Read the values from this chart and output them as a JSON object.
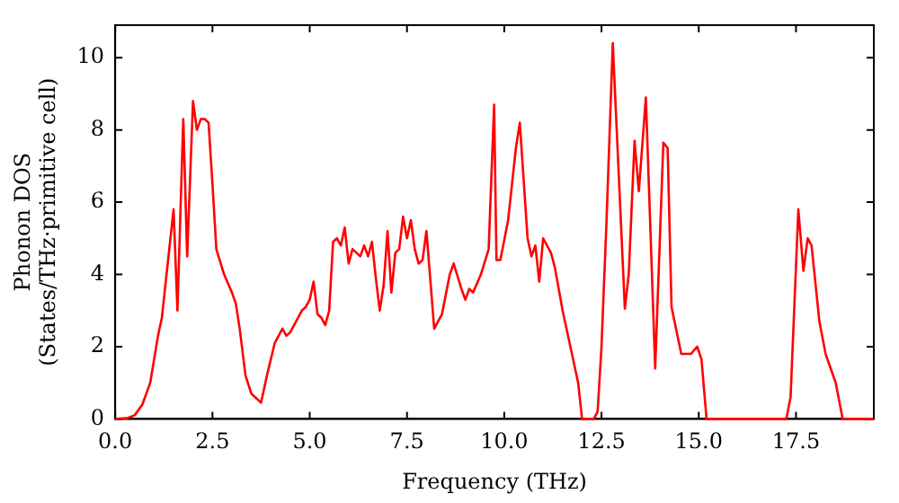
{
  "chart_data": {
    "type": "line",
    "xlabel": "Frequency (THz)",
    "ylabel": "Phonon DOS\n(States/THz·primitive cell)",
    "xlim": [
      0,
      19.5
    ],
    "xticks": [
      {
        "value": 0,
        "label": "0.0"
      },
      {
        "value": 2.5,
        "label": "2.5"
      },
      {
        "value": 5,
        "label": "5.0"
      },
      {
        "value": 7.5,
        "label": "7.5"
      },
      {
        "value": 10,
        "label": "10.0"
      },
      {
        "value": 12.5,
        "label": "12.5"
      },
      {
        "value": 15,
        "label": "15.0"
      },
      {
        "value": 17.5,
        "label": "17.5"
      }
    ],
    "ylim": [
      0,
      10.9
    ],
    "yticks": [
      0,
      2,
      4,
      6,
      8,
      10
    ],
    "grid": false,
    "legend": false,
    "marker": "none",
    "line_style": "solid",
    "series": [
      {
        "color": "#ff0000",
        "x": [
          0,
          0.3,
          0.5,
          0.7,
          0.9,
          1.1,
          1.2,
          1.5,
          1.6,
          1.75,
          1.85,
          2.0,
          2.1,
          2.2,
          2.3,
          2.4,
          2.5,
          2.6,
          2.8,
          3.0,
          3.1,
          3.2,
          3.35,
          3.5,
          3.75,
          3.9,
          4.1,
          4.3,
          4.4,
          4.5,
          4.6,
          4.8,
          4.9,
          5.0,
          5.1,
          5.2,
          5.3,
          5.4,
          5.5,
          5.6,
          5.7,
          5.8,
          5.9,
          6.0,
          6.1,
          6.2,
          6.3,
          6.4,
          6.5,
          6.6,
          6.7,
          6.8,
          6.9,
          7.0,
          7.1,
          7.2,
          7.3,
          7.4,
          7.5,
          7.6,
          7.7,
          7.8,
          7.9,
          8.0,
          8.2,
          8.4,
          8.6,
          8.7,
          8.9,
          9.0,
          9.1,
          9.2,
          9.4,
          9.6,
          9.74,
          9.8,
          9.9,
          10.1,
          10.3,
          10.4,
          10.6,
          10.7,
          10.8,
          10.9,
          11.0,
          11.2,
          11.3,
          11.5,
          11.8,
          11.9,
          12.0,
          12.3,
          12.4,
          12.5,
          12.63,
          12.79,
          13.1,
          13.2,
          13.35,
          13.46,
          13.64,
          13.88,
          14.09,
          14.2,
          14.3,
          14.55,
          14.8,
          14.96,
          15.07,
          15.2,
          17.25,
          17.36,
          17.56,
          17.69,
          17.8,
          17.9,
          18.1,
          18.26,
          18.52,
          18.7,
          19.5
        ],
        "values": [
          0,
          0.02,
          0.1,
          0.4,
          1,
          2.3,
          2.8,
          5.8,
          3.0,
          8.3,
          4.5,
          8.8,
          8.0,
          8.3,
          8.3,
          8.2,
          6.5,
          4.7,
          4.0,
          3.5,
          3.2,
          2.5,
          1.2,
          0.7,
          0.45,
          1.2,
          2.1,
          2.5,
          2.3,
          2.4,
          2.6,
          3.0,
          3.1,
          3.3,
          3.8,
          2.9,
          2.8,
          2.6,
          3.0,
          4.9,
          5.0,
          4.8,
          5.3,
          4.3,
          4.7,
          4.6,
          4.5,
          4.8,
          4.5,
          4.9,
          3.9,
          3.0,
          3.7,
          5.2,
          3.5,
          4.6,
          4.7,
          5.6,
          5.0,
          5.5,
          4.7,
          4.3,
          4.4,
          5.2,
          2.5,
          2.9,
          4.0,
          4.3,
          3.6,
          3.3,
          3.6,
          3.5,
          4.0,
          4.7,
          8.7,
          4.4,
          4.4,
          5.5,
          7.5,
          8.2,
          5.0,
          4.5,
          4.8,
          3.8,
          5.0,
          4.6,
          4.2,
          3.0,
          1.5,
          1.0,
          0,
          0,
          0.2,
          2.0,
          5.5,
          10.4,
          3.05,
          4.0,
          7.7,
          6.3,
          8.9,
          1.4,
          7.65,
          7.5,
          3.1,
          1.8,
          1.8,
          2.0,
          1.65,
          0,
          0,
          0.6,
          5.8,
          4.1,
          5.0,
          4.8,
          2.7,
          1.8,
          1.0,
          0,
          0
        ]
      }
    ]
  }
}
